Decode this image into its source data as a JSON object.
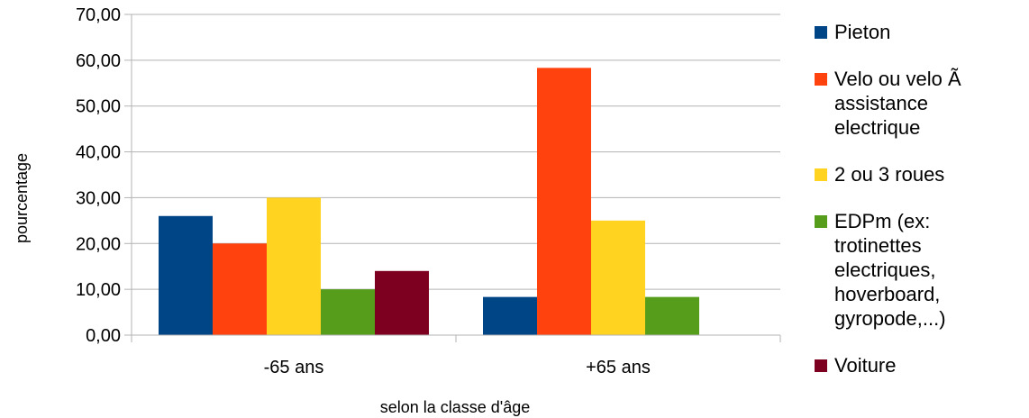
{
  "chart_data": {
    "type": "bar",
    "title": "",
    "xlabel": "selon la classe d'âge",
    "ylabel": "pourcentage",
    "categories": [
      "-65 ans",
      "+65 ans"
    ],
    "ylim": [
      0,
      70
    ],
    "ytick_step": 10,
    "yticks": [
      "0,00",
      "10,00",
      "20,00",
      "30,00",
      "40,00",
      "50,00",
      "60,00",
      "70,00"
    ],
    "grid": true,
    "legend_position": "right",
    "series": [
      {
        "name": "Pieton",
        "color": "#004586",
        "values": [
          26.0,
          8.33
        ]
      },
      {
        "name": "Velo ou velo Ã assistance electrique",
        "color": "#ff420e",
        "values": [
          20.0,
          58.33
        ]
      },
      {
        "name": "2 ou 3 roues",
        "color": "#ffd320",
        "values": [
          30.0,
          25.0
        ]
      },
      {
        "name": "EDPm (ex: trotinettes electriques, hoverboard, gyropode,...)",
        "color": "#579d1c",
        "values": [
          10.0,
          8.33
        ]
      },
      {
        "name": "Voiture",
        "color": "#7e0021",
        "values": [
          14.0,
          0
        ]
      }
    ]
  }
}
